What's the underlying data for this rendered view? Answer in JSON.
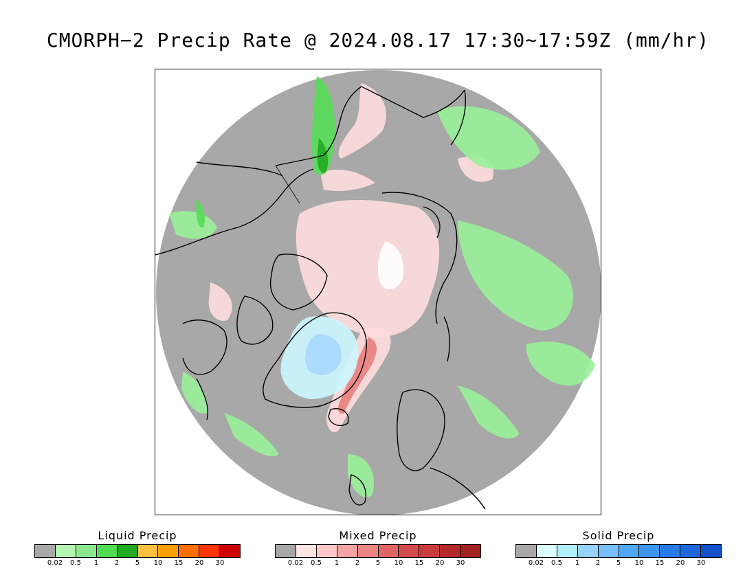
{
  "title": "CMORPH−2 Precip Rate @ 2024.08.17 17:30∼17:59Z (mm/hr)",
  "map": {
    "colors": {
      "background": "#a8a8a8",
      "frame": "#000000",
      "coast": "#000000",
      "liquid_light": "#99f099",
      "liquid_mid": "#55dd55",
      "liquid_strong": "#22aa22",
      "mixed_light": "#ffdddd",
      "mixed_mid": "#f8c4c4",
      "mixed_strong": "#e88080",
      "solid_light": "#ccf6ff",
      "solid_mid": "#a8d8ff",
      "white": "#ffffff"
    }
  },
  "legends": [
    {
      "title": "Liquid Precip",
      "colors": [
        "#a8a8a8",
        "#b4f5b4",
        "#8ce88c",
        "#50dc50",
        "#22aa22",
        "#ffbf3f",
        "#ff9f00",
        "#ff6f00",
        "#ff3300",
        "#cc0000"
      ],
      "ticks": [
        "0.02",
        "0.5",
        "1",
        "2",
        "5",
        "10",
        "15",
        "20",
        "30"
      ]
    },
    {
      "title": "Mixed Precip",
      "colors": [
        "#a8a8a8",
        "#ffe4e4",
        "#ffc8c8",
        "#f4a4a4",
        "#ec8484",
        "#e06464",
        "#d44c4c",
        "#c83c3c",
        "#b42a2a",
        "#a22222"
      ],
      "ticks": [
        "0.02",
        "0.5",
        "1",
        "2",
        "5",
        "10",
        "15",
        "20",
        "30"
      ]
    },
    {
      "title": "Solid Precip",
      "colors": [
        "#a8a8a8",
        "#dcffff",
        "#b0eefc",
        "#96d2fa",
        "#78befa",
        "#50a8f4",
        "#3c96f0",
        "#287ae6",
        "#1e68dc",
        "#1450c8"
      ],
      "ticks": [
        "0.02",
        "0.5",
        "1",
        "2",
        "5",
        "10",
        "15",
        "20",
        "30"
      ]
    }
  ]
}
